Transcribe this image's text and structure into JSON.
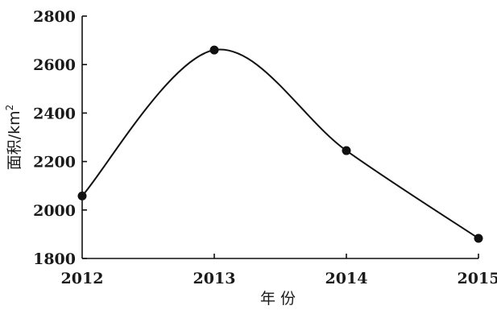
{
  "chart_data": {
    "type": "line",
    "title": "",
    "xlabel": "年份",
    "ylabel_main": "面积/km",
    "ylabel_sup": "2",
    "x": [
      2012,
      2013,
      2014,
      2015
    ],
    "series": [
      {
        "values": [
          2058,
          2660,
          2245,
          1883
        ]
      }
    ],
    "x_ticks": [
      "2012",
      "2013",
      "2014",
      "2015"
    ],
    "y_ticks": [
      1800,
      2000,
      2200,
      2400,
      2600,
      2800
    ],
    "y_tick_labels": [
      "1800",
      "2000",
      "2200",
      "2400",
      "2600",
      "2800"
    ],
    "ylim": [
      1800,
      2800
    ],
    "smooth": true,
    "grid": false,
    "legend": "none",
    "line_color": "#111111",
    "marker_color": "#111111"
  }
}
